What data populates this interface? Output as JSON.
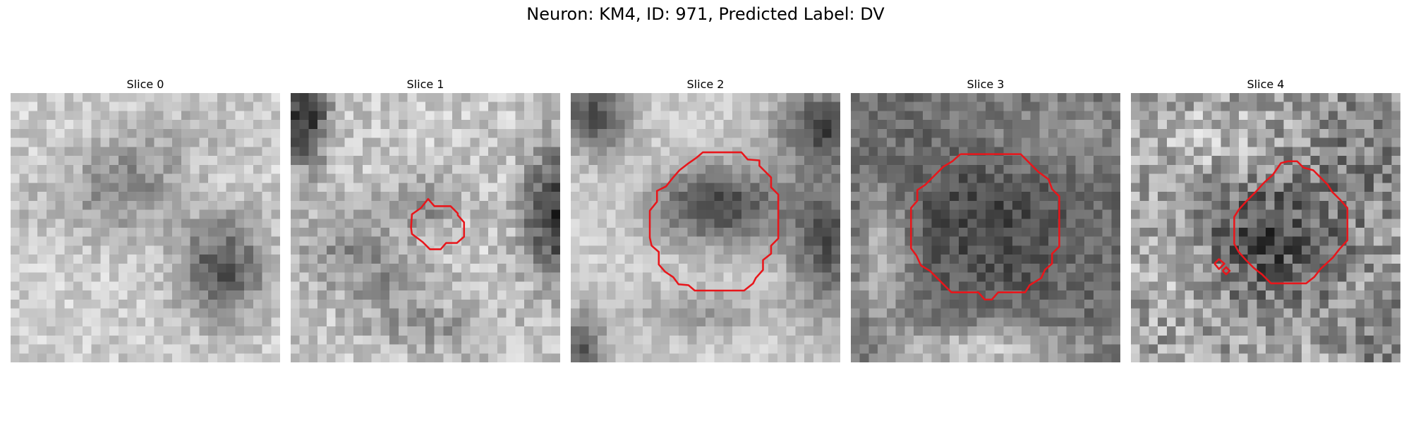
{
  "figure": {
    "title": "Neuron: KM4, ID: 971, Predicted Label: DV"
  },
  "colors": {
    "contour": "#e8161b",
    "background": "#ffffff"
  },
  "panels": [
    {
      "title": "Slice 0"
    },
    {
      "title": "Slice 1"
    },
    {
      "title": "Slice 2"
    },
    {
      "title": "Slice 3"
    },
    {
      "title": "Slice 4"
    }
  ]
}
